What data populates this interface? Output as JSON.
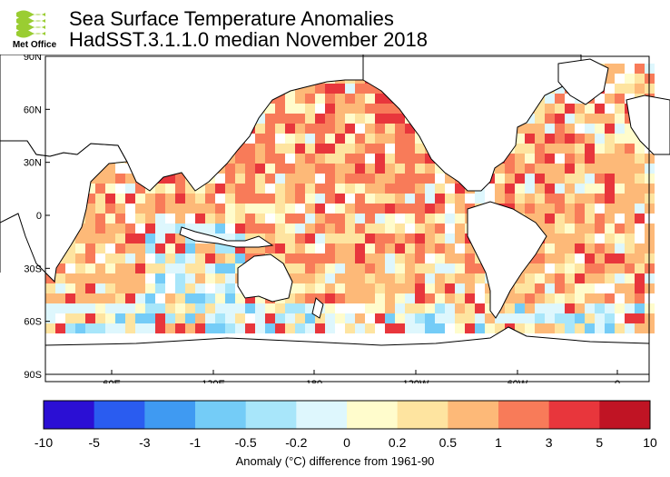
{
  "logo": {
    "text": "Met Office"
  },
  "title": {
    "line1": "Sea Surface Temperature Anomalies",
    "line2": "HadSST.3.1.1.0 median November 2018"
  },
  "map": {
    "lat_labels": [
      "90N",
      "60N",
      "30N",
      "0",
      "30S",
      "60S",
      "90S"
    ],
    "lon_labels": [
      "60E",
      "120E",
      "180",
      "120W",
      "60W",
      "0"
    ]
  },
  "legend": {
    "tick_labels": [
      "-10",
      "-5",
      "-3",
      "-1",
      "-0.5",
      "-0.2",
      "0",
      "0.2",
      "0.5",
      "1",
      "3",
      "5",
      "10"
    ],
    "colors": [
      "#2b0fd4",
      "#2a5cf0",
      "#3f9af2",
      "#74ccf7",
      "#a8e6fa",
      "#def7fd",
      "#fffccc",
      "#fee4a0",
      "#fdb978",
      "#f87b59",
      "#e8363c",
      "#c01424"
    ],
    "caption": "Anomaly (°C) difference from 1961-90"
  },
  "colors": {
    "land": "#ffffff",
    "coast": "#000000",
    "frame": "#000000"
  }
}
